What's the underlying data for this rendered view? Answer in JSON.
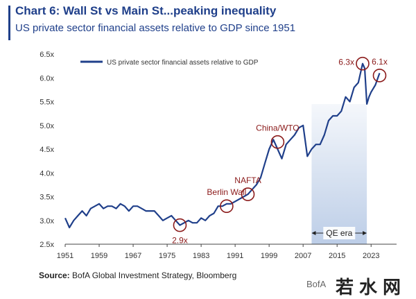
{
  "header": {
    "title": "Chart 6: Wall St vs Main St...peaking inequality",
    "subtitle": "US private sector financial assets relative to GDP since 1951"
  },
  "footer": {
    "source_label": "Source:",
    "source_text": " BofA Global Investment Strategy, Bloomberg",
    "brand": "BofA",
    "watermark": "若水网"
  },
  "colors": {
    "line": "#1f3f8a",
    "annotation": "#8b1a1a",
    "qe_shade": "#b9cbe6"
  },
  "chart_data": {
    "type": "line",
    "title": "US private sector financial assets relative to GDP since 1951",
    "xlabel": "",
    "ylabel": "",
    "xlim": [
      1951,
      2029
    ],
    "ylim": [
      2.5,
      6.5
    ],
    "x_ticks": [
      "1951",
      "1959",
      "1967",
      "1975",
      "1983",
      "1991",
      "1999",
      "2007",
      "2015",
      "2023"
    ],
    "y_ticks": [
      "2.5x",
      "3.0x",
      "3.5x",
      "4.0x",
      "4.5x",
      "5.0x",
      "5.5x",
      "6.0x",
      "6.5x"
    ],
    "series": [
      {
        "name": "US private sector financial assets relative to GDP",
        "x": [
          1951,
          1952,
          1953,
          1954,
          1955,
          1956,
          1957,
          1958,
          1959,
          1960,
          1961,
          1962,
          1963,
          1964,
          1965,
          1966,
          1967,
          1968,
          1969,
          1970,
          1971,
          1972,
          1973,
          1974,
          1975,
          1976,
          1977,
          1978,
          1979,
          1980,
          1981,
          1982,
          1983,
          1984,
          1985,
          1986,
          1987,
          1988,
          1989,
          1990,
          1991,
          1992,
          1993,
          1994,
          1995,
          1996,
          1997,
          1998,
          1999,
          2000,
          2001,
          2002,
          2003,
          2004,
          2005,
          2006,
          2007,
          2008,
          2009,
          2010,
          2011,
          2012,
          2013,
          2014,
          2015,
          2016,
          2017,
          2018,
          2019,
          2020,
          2021,
          2021.5,
          2022,
          2022.5,
          2023,
          2024,
          2025
        ],
        "values": [
          3.05,
          2.85,
          3.0,
          3.1,
          3.2,
          3.1,
          3.25,
          3.3,
          3.35,
          3.25,
          3.3,
          3.3,
          3.25,
          3.35,
          3.3,
          3.2,
          3.3,
          3.3,
          3.25,
          3.2,
          3.2,
          3.2,
          3.1,
          3.0,
          3.05,
          3.1,
          3.0,
          2.9,
          2.95,
          3.0,
          2.95,
          2.95,
          3.05,
          3.0,
          3.1,
          3.15,
          3.3,
          3.3,
          3.35,
          3.35,
          3.4,
          3.45,
          3.5,
          3.55,
          3.65,
          3.75,
          3.9,
          4.2,
          4.5,
          4.7,
          4.5,
          4.3,
          4.6,
          4.7,
          4.8,
          4.95,
          5.0,
          4.35,
          4.5,
          4.6,
          4.6,
          4.8,
          5.1,
          5.2,
          5.2,
          5.3,
          5.6,
          5.5,
          5.8,
          5.9,
          6.3,
          6.2,
          5.45,
          5.6,
          5.7,
          5.85,
          6.1
        ]
      }
    ],
    "annotations": [
      {
        "label": "2.9x",
        "x": 1978,
        "y": 2.9,
        "label_pos": "below"
      },
      {
        "label": "Berlin Wall",
        "x": 1989,
        "y": 3.3,
        "label_pos": "above"
      },
      {
        "label": "NAFTA",
        "x": 1994,
        "y": 3.55,
        "label_pos": "above"
      },
      {
        "label": "China/WTO",
        "x": 2001,
        "y": 4.65,
        "label_pos": "above"
      },
      {
        "label": "6.3x",
        "x": 2021,
        "y": 6.3,
        "label_pos": "left"
      },
      {
        "label": "6.1x",
        "x": 2025,
        "y": 6.05,
        "label_pos": "above"
      }
    ],
    "shaded_region": {
      "label": "QE era",
      "x_start": 2009,
      "x_end": 2022
    },
    "legend": {
      "position": "top-left",
      "label": "US private sector financial assets relative to GDP"
    },
    "grid": false
  }
}
